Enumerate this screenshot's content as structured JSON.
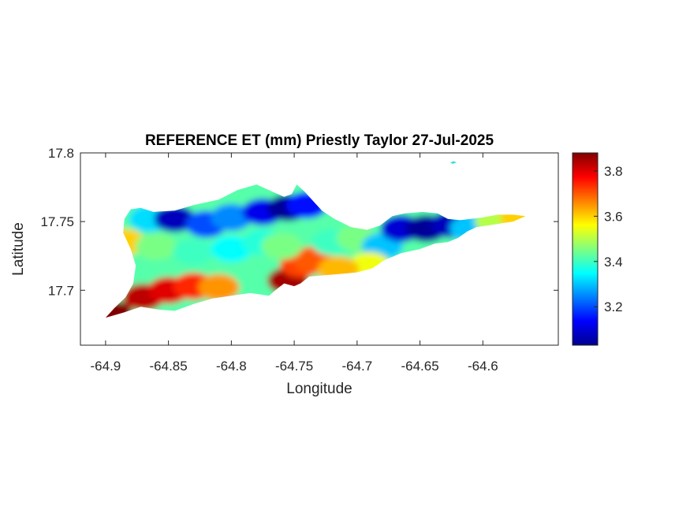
{
  "chart_data": {
    "type": "heatmap",
    "title": "REFERENCE ET (mm) Priestly Taylor 27-Jul-2025",
    "xlabel": "Longitude",
    "ylabel": "Latitude",
    "xlim": [
      -64.92,
      -64.54
    ],
    "ylim": [
      17.66,
      17.8
    ],
    "xticks": [
      -64.9,
      -64.85,
      -64.8,
      -64.75,
      -64.7,
      -64.65,
      -64.6
    ],
    "xtick_labels": [
      "-64.9",
      "-64.85",
      "-64.8",
      "-64.75",
      "-64.7",
      "-64.65",
      "-64.6"
    ],
    "yticks": [
      17.7,
      17.75,
      17.8
    ],
    "ytick_labels": [
      "17.7",
      "17.75",
      "17.8"
    ],
    "colorbar": {
      "colormap": "jet",
      "clim": [
        3.03,
        3.88
      ],
      "ticks": [
        3.2,
        3.4,
        3.6,
        3.8
      ],
      "tick_labels": [
        "3.2",
        "3.4",
        "3.6",
        "3.8"
      ]
    },
    "grid": false,
    "legend": "none",
    "outline": [
      [
        -64.9,
        17.68
      ],
      [
        -64.893,
        17.687
      ],
      [
        -64.884,
        17.695
      ],
      [
        -64.878,
        17.705
      ],
      [
        -64.876,
        17.718
      ],
      [
        -64.88,
        17.73
      ],
      [
        -64.886,
        17.742
      ],
      [
        -64.885,
        17.752
      ],
      [
        -64.88,
        17.759
      ],
      [
        -64.872,
        17.76
      ],
      [
        -64.862,
        17.757
      ],
      [
        -64.845,
        17.758
      ],
      [
        -64.83,
        17.762
      ],
      [
        -64.81,
        17.766
      ],
      [
        -64.795,
        17.773
      ],
      [
        -64.78,
        17.777
      ],
      [
        -64.768,
        17.772
      ],
      [
        -64.758,
        17.768
      ],
      [
        -64.752,
        17.77
      ],
      [
        -64.748,
        17.777
      ],
      [
        -64.742,
        17.772
      ],
      [
        -64.735,
        17.765
      ],
      [
        -64.728,
        17.758
      ],
      [
        -64.718,
        17.752
      ],
      [
        -64.705,
        17.746
      ],
      [
        -64.692,
        17.744
      ],
      [
        -64.682,
        17.747
      ],
      [
        -64.672,
        17.754
      ],
      [
        -64.662,
        17.756
      ],
      [
        -64.648,
        17.757
      ],
      [
        -64.636,
        17.756
      ],
      [
        -64.628,
        17.752
      ],
      [
        -64.618,
        17.751
      ],
      [
        -64.6,
        17.753
      ],
      [
        -64.588,
        17.755
      ],
      [
        -64.576,
        17.755
      ],
      [
        -64.566,
        17.754
      ],
      [
        -64.576,
        17.75
      ],
      [
        -64.59,
        17.748
      ],
      [
        -64.605,
        17.746
      ],
      [
        -64.612,
        17.743
      ],
      [
        -64.62,
        17.738
      ],
      [
        -64.628,
        17.735
      ],
      [
        -64.638,
        17.734
      ],
      [
        -64.65,
        17.73
      ],
      [
        -64.665,
        17.727
      ],
      [
        -64.678,
        17.722
      ],
      [
        -64.688,
        17.716
      ],
      [
        -64.7,
        17.713
      ],
      [
        -64.712,
        17.712
      ],
      [
        -64.725,
        17.711
      ],
      [
        -64.738,
        17.71
      ],
      [
        -64.745,
        17.705
      ],
      [
        -64.75,
        17.703
      ],
      [
        -64.758,
        17.705
      ],
      [
        -64.765,
        17.7
      ],
      [
        -64.77,
        17.696
      ],
      [
        -64.785,
        17.698
      ],
      [
        -64.8,
        17.696
      ],
      [
        -64.815,
        17.694
      ],
      [
        -64.83,
        17.69
      ],
      [
        -64.845,
        17.685
      ],
      [
        -64.858,
        17.686
      ],
      [
        -64.872,
        17.688
      ],
      [
        -64.885,
        17.684
      ],
      [
        -64.9,
        17.68
      ]
    ],
    "islet": [
      [
        -64.626,
        17.793
      ],
      [
        -64.623,
        17.794
      ],
      [
        -64.621,
        17.793
      ],
      [
        -64.624,
        17.792
      ],
      [
        -64.626,
        17.793
      ]
    ],
    "notes_values": [
      {
        "lon": -64.895,
        "lat": 17.683,
        "value": 3.88
      },
      {
        "lon": -64.87,
        "lat": 17.695,
        "value": 3.83
      },
      {
        "lon": -64.85,
        "lat": 17.7,
        "value": 3.8
      },
      {
        "lon": -64.83,
        "lat": 17.703,
        "value": 3.74
      },
      {
        "lon": -64.81,
        "lat": 17.702,
        "value": 3.65
      },
      {
        "lon": -64.755,
        "lat": 17.707,
        "value": 3.85
      },
      {
        "lon": -64.745,
        "lat": 17.719,
        "value": 3.72
      },
      {
        "lon": -64.735,
        "lat": 17.722,
        "value": 3.7
      },
      {
        "lon": -64.885,
        "lat": 17.735,
        "value": 3.6
      },
      {
        "lon": -64.865,
        "lat": 17.752,
        "value": 3.32
      },
      {
        "lon": -64.845,
        "lat": 17.752,
        "value": 3.08
      },
      {
        "lon": -64.82,
        "lat": 17.748,
        "value": 3.2
      },
      {
        "lon": -64.8,
        "lat": 17.753,
        "value": 3.25
      },
      {
        "lon": -64.775,
        "lat": 17.757,
        "value": 3.12
      },
      {
        "lon": -64.755,
        "lat": 17.76,
        "value": 3.05
      },
      {
        "lon": -64.74,
        "lat": 17.762,
        "value": 3.15
      },
      {
        "lon": -64.86,
        "lat": 17.732,
        "value": 3.45
      },
      {
        "lon": -64.83,
        "lat": 17.728,
        "value": 3.4
      },
      {
        "lon": -64.8,
        "lat": 17.73,
        "value": 3.35
      },
      {
        "lon": -64.775,
        "lat": 17.735,
        "value": 3.38
      },
      {
        "lon": -64.76,
        "lat": 17.732,
        "value": 3.45
      },
      {
        "lon": -64.72,
        "lat": 17.735,
        "value": 3.4
      },
      {
        "lon": -64.7,
        "lat": 17.738,
        "value": 3.45
      },
      {
        "lon": -64.68,
        "lat": 17.732,
        "value": 3.3
      },
      {
        "lon": -64.665,
        "lat": 17.745,
        "value": 3.1
      },
      {
        "lon": -64.645,
        "lat": 17.745,
        "value": 3.05
      },
      {
        "lon": -64.625,
        "lat": 17.748,
        "value": 3.08
      },
      {
        "lon": -64.61,
        "lat": 17.745,
        "value": 3.3
      },
      {
        "lon": -64.59,
        "lat": 17.75,
        "value": 3.5
      },
      {
        "lon": -64.57,
        "lat": 17.753,
        "value": 3.6
      },
      {
        "lon": -64.69,
        "lat": 17.718,
        "value": 3.55
      },
      {
        "lon": -64.715,
        "lat": 17.715,
        "value": 3.62
      }
    ]
  }
}
